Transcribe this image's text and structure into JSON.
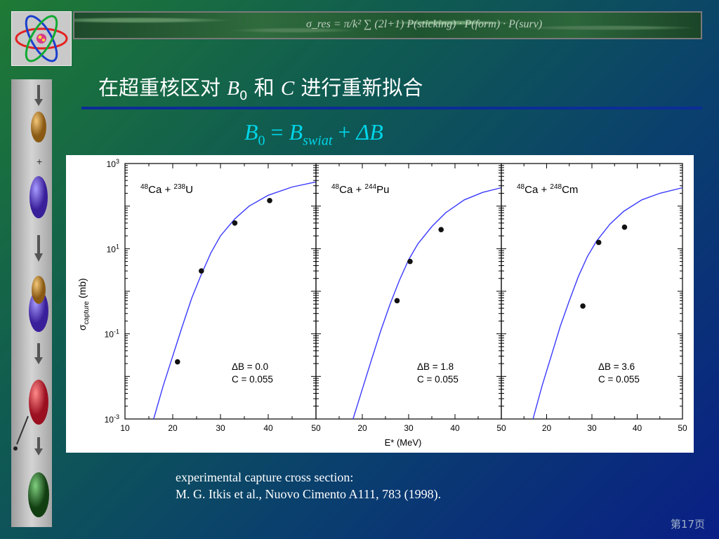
{
  "header": {
    "formula": "σ_res = π/k² ∑ (2l+1) P(sticking) · P(form) · P(surv)"
  },
  "title": {
    "prefix": "在超重核区对",
    "b0_var": "B",
    "b0_sub": "0",
    "and": "和",
    "c_var": "C",
    "suffix": "进行重新拟合"
  },
  "formula": {
    "lhs": "B",
    "lhs_sub": "0",
    "eq": "=",
    "rhs": "B",
    "rhs_sub": "swiat",
    "plus": "+",
    "delta": "ΔB"
  },
  "caption": {
    "line1": "experimental capture cross section:",
    "line2": "M. G. Itkis et al., Nuovo Cimento A111, 783 (1998)."
  },
  "page_number": "第17页",
  "colors": {
    "curve": "#3a3aff",
    "title": "#ffffff",
    "formula": "#00d5e8"
  },
  "chart_data": {
    "type": "scatter",
    "xlabel": "E* (MeV)",
    "ylabel": "σcapture (mb)",
    "yscale": "log",
    "ylim": [
      0.001,
      1000
    ],
    "yticks": [
      "10³",
      "10¹",
      "10⁻¹",
      "10⁻³"
    ],
    "panels": [
      {
        "reaction_a": "48",
        "reaction_a_el": "Ca",
        "reaction_b": "238",
        "reaction_b_el": "U",
        "delta_b": "ΔB = 0.0",
        "c_value": "C = 0.055",
        "xlim": [
          10,
          50
        ],
        "xticks": [
          "10",
          "20",
          "30",
          "40",
          "50"
        ],
        "points": [
          [
            21,
            0.022
          ],
          [
            26,
            3.0
          ],
          [
            33,
            40
          ],
          [
            40.3,
            135
          ]
        ],
        "curve": [
          [
            16,
            0.001
          ],
          [
            18,
            0.006
          ],
          [
            20,
            0.03
          ],
          [
            22,
            0.15
          ],
          [
            24,
            0.7
          ],
          [
            26,
            2.5
          ],
          [
            28,
            8
          ],
          [
            30,
            20
          ],
          [
            33,
            50
          ],
          [
            36,
            100
          ],
          [
            40,
            180
          ],
          [
            45,
            280
          ],
          [
            50,
            370
          ]
        ]
      },
      {
        "reaction_a": "48",
        "reaction_a_el": "Ca",
        "reaction_b": "244",
        "reaction_b_el": "Pu",
        "delta_b": "ΔB = 1.8",
        "c_value": "C = 0.055",
        "xlim": [
          10,
          50
        ],
        "xticks": [
          "20",
          "30",
          "40",
          "50"
        ],
        "points": [
          [
            27.5,
            0.6
          ],
          [
            30.3,
            5.0
          ],
          [
            37,
            28
          ]
        ],
        "curve": [
          [
            18,
            0.001
          ],
          [
            20,
            0.005
          ],
          [
            22,
            0.025
          ],
          [
            24,
            0.12
          ],
          [
            26,
            0.5
          ],
          [
            28,
            1.8
          ],
          [
            30,
            5.5
          ],
          [
            32,
            13
          ],
          [
            35,
            33
          ],
          [
            38,
            70
          ],
          [
            42,
            140
          ],
          [
            46,
            210
          ],
          [
            50,
            270
          ]
        ]
      },
      {
        "reaction_a": "48",
        "reaction_a_el": "Ca",
        "reaction_b": "248",
        "reaction_b_el": "Cm",
        "delta_b": "ΔB = 3.6",
        "c_value": "C = 0.055",
        "xlim": [
          10,
          50
        ],
        "xticks": [
          "20",
          "30",
          "40",
          "50"
        ],
        "points": [
          [
            28,
            0.45
          ],
          [
            31.5,
            14
          ],
          [
            37.2,
            32
          ]
        ],
        "curve": [
          [
            17,
            0.001
          ],
          [
            19,
            0.006
          ],
          [
            21,
            0.03
          ],
          [
            23,
            0.15
          ],
          [
            25,
            0.6
          ],
          [
            27,
            2.2
          ],
          [
            29,
            6.5
          ],
          [
            31,
            15
          ],
          [
            34,
            38
          ],
          [
            37,
            75
          ],
          [
            41,
            140
          ],
          [
            45,
            200
          ],
          [
            50,
            270
          ]
        ]
      }
    ]
  }
}
